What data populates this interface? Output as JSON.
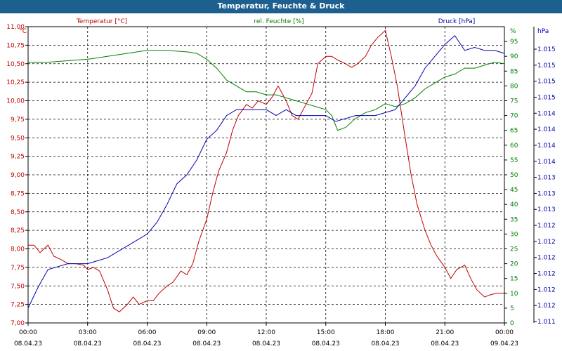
{
  "window": {
    "title": "Temperatur, Feuchte & Druck"
  },
  "colors": {
    "background": "#ffffff",
    "titlebar": "#1d5f8f",
    "temperature": "#c00000",
    "humidity": "#008000",
    "pressure": "#0000b0",
    "grid": "#000000"
  },
  "chart_data": {
    "type": "line",
    "grid": true,
    "legend": "top",
    "x": {
      "ticks": [
        {
          "time": "00:00",
          "date": "08.04.23"
        },
        {
          "time": "03:00",
          "date": "08.04.23"
        },
        {
          "time": "06:00",
          "date": "08.04.23"
        },
        {
          "time": "09:00",
          "date": "08.04.23"
        },
        {
          "time": "12:00",
          "date": "08.04.23"
        },
        {
          "time": "15:00",
          "date": "08.04.23"
        },
        {
          "time": "18:00",
          "date": "08.04.23"
        },
        {
          "time": "21:00",
          "date": "08.04.23"
        },
        {
          "time": "00:00",
          "date": "09.04.23"
        }
      ],
      "range_hours": [
        0,
        24
      ]
    },
    "axes": {
      "left": {
        "unit_label": "°C",
        "ylim": [
          7.0,
          11.0
        ],
        "ticks": [
          "7,00",
          "7,25",
          "7,50",
          "7,75",
          "8,00",
          "8,25",
          "8,50",
          "8,75",
          "9,00",
          "9,25",
          "9,50",
          "9,75",
          "10,00",
          "10,25",
          "10,50",
          "10,75",
          "11,00"
        ]
      },
      "right1": {
        "unit_label": "%",
        "ylim": [
          0,
          100
        ],
        "ticks": [
          "0",
          "5",
          "10",
          "15",
          "20",
          "25",
          "30",
          "35",
          "40",
          "45",
          "50",
          "55",
          "60",
          "65",
          "70",
          "75",
          "80",
          "85",
          "90",
          "95"
        ]
      },
      "right2": {
        "unit_label": "hPa",
        "ticks": [
          "1.011",
          "1.012",
          "1.012",
          "1.012",
          "1.012",
          "1.012",
          "1.012",
          "1.013",
          "1.013",
          "1.013",
          "1.014",
          "1.014",
          "1.014",
          "1.014",
          "1.015",
          "1.015",
          "1.015",
          "1.015"
        ]
      }
    },
    "series": [
      {
        "name": "Temperatur [°C]",
        "axis": "left",
        "color": "#c00000",
        "x": [
          0,
          0.3,
          0.6,
          1,
          1.3,
          1.7,
          2,
          2.4,
          2.8,
          3,
          3.3,
          3.6,
          4,
          4.3,
          4.6,
          5,
          5.3,
          5.6,
          6,
          6.3,
          6.6,
          7,
          7.3,
          7.7,
          8,
          8.3,
          8.6,
          9,
          9.3,
          9.6,
          10,
          10.3,
          10.6,
          11,
          11.3,
          11.6,
          12,
          12.3,
          12.6,
          13,
          13.3,
          13.6,
          14,
          14.3,
          14.6,
          15,
          15.3,
          15.6,
          16,
          16.3,
          16.6,
          17,
          17.3,
          17.6,
          18,
          18.3,
          18.6,
          19,
          19.3,
          19.6,
          20,
          20.3,
          20.6,
          21,
          21.3,
          21.6,
          22,
          22.3,
          22.6,
          23,
          23.3,
          23.6,
          24
        ],
        "y": [
          8.05,
          8.05,
          7.95,
          8.05,
          7.9,
          7.85,
          7.8,
          7.8,
          7.78,
          7.72,
          7.75,
          7.7,
          7.45,
          7.2,
          7.15,
          7.25,
          7.35,
          7.25,
          7.3,
          7.3,
          7.4,
          7.5,
          7.55,
          7.7,
          7.65,
          7.8,
          8.1,
          8.4,
          8.75,
          9.05,
          9.3,
          9.6,
          9.8,
          9.95,
          9.9,
          10.0,
          9.95,
          10.05,
          10.2,
          10.0,
          9.8,
          9.75,
          9.95,
          10.1,
          10.5,
          10.6,
          10.6,
          10.55,
          10.5,
          10.45,
          10.5,
          10.6,
          10.75,
          10.85,
          10.95,
          10.6,
          10.2,
          9.5,
          9.0,
          8.6,
          8.25,
          8.05,
          7.9,
          7.75,
          7.6,
          7.72,
          7.78,
          7.6,
          7.45,
          7.35,
          7.38,
          7.4,
          7.4
        ]
      },
      {
        "name": "rel. Feuchte [%]",
        "axis": "right1",
        "color": "#008000",
        "x": [
          0,
          1,
          2,
          3,
          4,
          5,
          6,
          7,
          8,
          8.5,
          9,
          9.5,
          10,
          10.5,
          11,
          11.5,
          12,
          12.5,
          13,
          13.5,
          14,
          14.5,
          15,
          15.3,
          15.6,
          16,
          16.5,
          17,
          17.5,
          18,
          18.5,
          19,
          19.5,
          20,
          20.5,
          21,
          21.5,
          22,
          22.5,
          23,
          23.5,
          24
        ],
        "y": [
          88,
          88,
          88.5,
          89,
          90,
          91,
          92,
          92,
          91.5,
          91,
          89,
          86,
          82,
          80,
          78,
          78,
          77,
          77,
          76,
          75,
          74,
          73,
          72,
          70,
          65,
          66,
          69,
          71,
          72,
          74,
          73,
          74,
          76,
          79,
          81,
          83,
          84,
          86,
          86,
          87,
          88,
          87.5
        ]
      },
      {
        "name": "Druck [hPa]",
        "axis": "right2",
        "color": "#0000b0",
        "x": [
          0,
          0.5,
          1,
          1.5,
          2,
          2.5,
          3,
          3.5,
          4,
          4.5,
          5,
          5.5,
          6,
          6.5,
          7,
          7.5,
          8,
          8.5,
          9,
          9.5,
          10,
          10.5,
          11,
          11.5,
          12,
          12.5,
          13,
          13.5,
          14,
          14.5,
          15,
          15.5,
          16,
          16.5,
          17,
          17.5,
          18,
          18.5,
          19,
          19.5,
          20,
          20.5,
          21,
          21.5,
          22,
          22.5,
          23,
          23.5,
          24
        ],
        "norm": [
          0.05,
          0.12,
          0.18,
          0.19,
          0.2,
          0.2,
          0.2,
          0.21,
          0.22,
          0.24,
          0.26,
          0.28,
          0.3,
          0.34,
          0.4,
          0.47,
          0.5,
          0.55,
          0.62,
          0.65,
          0.7,
          0.72,
          0.72,
          0.72,
          0.72,
          0.7,
          0.72,
          0.7,
          0.7,
          0.7,
          0.7,
          0.68,
          0.69,
          0.7,
          0.7,
          0.7,
          0.71,
          0.72,
          0.76,
          0.8,
          0.86,
          0.9,
          0.94,
          0.97,
          0.92,
          0.93,
          0.92,
          0.92,
          0.91
        ]
      }
    ]
  }
}
